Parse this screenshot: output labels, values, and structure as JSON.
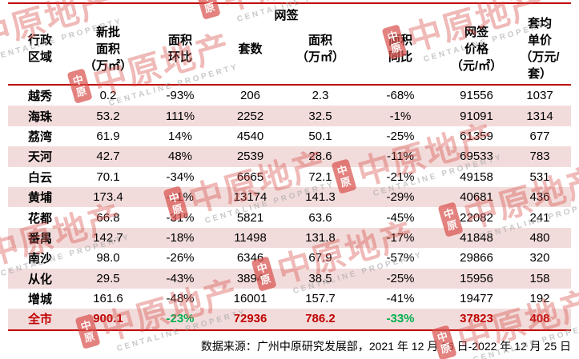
{
  "table": {
    "group_header": "网签",
    "columns": [
      "行政\n区域",
      "新批\n面积\n（万㎡）",
      "面积\n环比",
      "套数",
      "面积\n（万㎡）",
      "面积\n同比",
      "网签\n价格\n（元/㎡）",
      "套均\n单价\n（万元/\n套）"
    ],
    "rows": [
      [
        "越秀",
        "0.2",
        "-93%",
        "206",
        "2.3",
        "-68%",
        "91556",
        "1037"
      ],
      [
        "海珠",
        "53.2",
        "111%",
        "2252",
        "32.5",
        "-1%",
        "91091",
        "1314"
      ],
      [
        "荔湾",
        "61.9",
        "14%",
        "4540",
        "50.1",
        "-25%",
        "61359",
        "677"
      ],
      [
        "天河",
        "42.7",
        "48%",
        "2539",
        "28.6",
        "-11%",
        "69533",
        "783"
      ],
      [
        "白云",
        "70.1",
        "-34%",
        "6665",
        "72.1",
        "-21%",
        "49158",
        "531"
      ],
      [
        "黄埔",
        "173.4",
        "-11%",
        "13174",
        "141.3",
        "-29%",
        "40681",
        "436"
      ],
      [
        "花都",
        "66.8",
        "-31%",
        "5821",
        "63.6",
        "-45%",
        "22082",
        "241"
      ],
      [
        "番禺",
        "142.7",
        "-18%",
        "11498",
        "131.8",
        "-17%",
        "41848",
        "480"
      ],
      [
        "南沙",
        "98.0",
        "-26%",
        "6346",
        "67.9",
        "-57%",
        "29866",
        "320"
      ],
      [
        "从化",
        "29.5",
        "-43%",
        "3894",
        "38.5",
        "-25%",
        "15956",
        "158"
      ],
      [
        "增城",
        "161.6",
        "-48%",
        "16001",
        "157.7",
        "-41%",
        "19477",
        "192"
      ],
      [
        "全市",
        "900.1",
        "-23%",
        "72936",
        "786.2",
        "-33%",
        "37823",
        "408"
      ]
    ],
    "total_row_label": "全市"
  },
  "chart_data": {
    "type": "table",
    "title": "",
    "columns": [
      "行政区域",
      "新批面积（万㎡）",
      "面积环比",
      "网签套数",
      "网签面积（万㎡）",
      "面积同比",
      "网签价格（元/㎡）",
      "套均单价（万元/套）"
    ],
    "rows": [
      [
        "越秀",
        0.2,
        "-93%",
        206,
        2.3,
        "-68%",
        91556,
        1037
      ],
      [
        "海珠",
        53.2,
        "111%",
        2252,
        32.5,
        "-1%",
        91091,
        1314
      ],
      [
        "荔湾",
        61.9,
        "14%",
        4540,
        50.1,
        "-25%",
        61359,
        677
      ],
      [
        "天河",
        42.7,
        "48%",
        2539,
        28.6,
        "-11%",
        69533,
        783
      ],
      [
        "白云",
        70.1,
        "-34%",
        6665,
        72.1,
        "-21%",
        49158,
        531
      ],
      [
        "黄埔",
        173.4,
        "-11%",
        13174,
        141.3,
        "-29%",
        40681,
        436
      ],
      [
        "花都",
        66.8,
        "-31%",
        5821,
        63.6,
        "-45%",
        22082,
        241
      ],
      [
        "番禺",
        142.7,
        "-18%",
        11498,
        131.8,
        "-17%",
        41848,
        480
      ],
      [
        "南沙",
        98.0,
        "-26%",
        6346,
        67.9,
        "-57%",
        29866,
        320
      ],
      [
        "从化",
        29.5,
        "-43%",
        3894,
        38.5,
        "-25%",
        15956,
        158
      ],
      [
        "增城",
        161.6,
        "-48%",
        16001,
        157.7,
        "-41%",
        19477,
        192
      ],
      [
        "全市",
        900.1,
        "-23%",
        72936,
        786.2,
        "-33%",
        37823,
        408
      ]
    ]
  },
  "footer": {
    "source": "数据来源：广州中原研究发展部，2021 年 12 月 26 日-2022 年 12 月 25 日"
  },
  "watermark": {
    "logo_line1": "中",
    "logo_line2": "原",
    "brand": "中原地产",
    "subtitle": "CENTALINE PROPERTY"
  },
  "colors": {
    "accent_red": "#C00000",
    "total_green": "#00B050",
    "row_pink": "#F2DCDB",
    "watermark_red": "#D8524D"
  }
}
